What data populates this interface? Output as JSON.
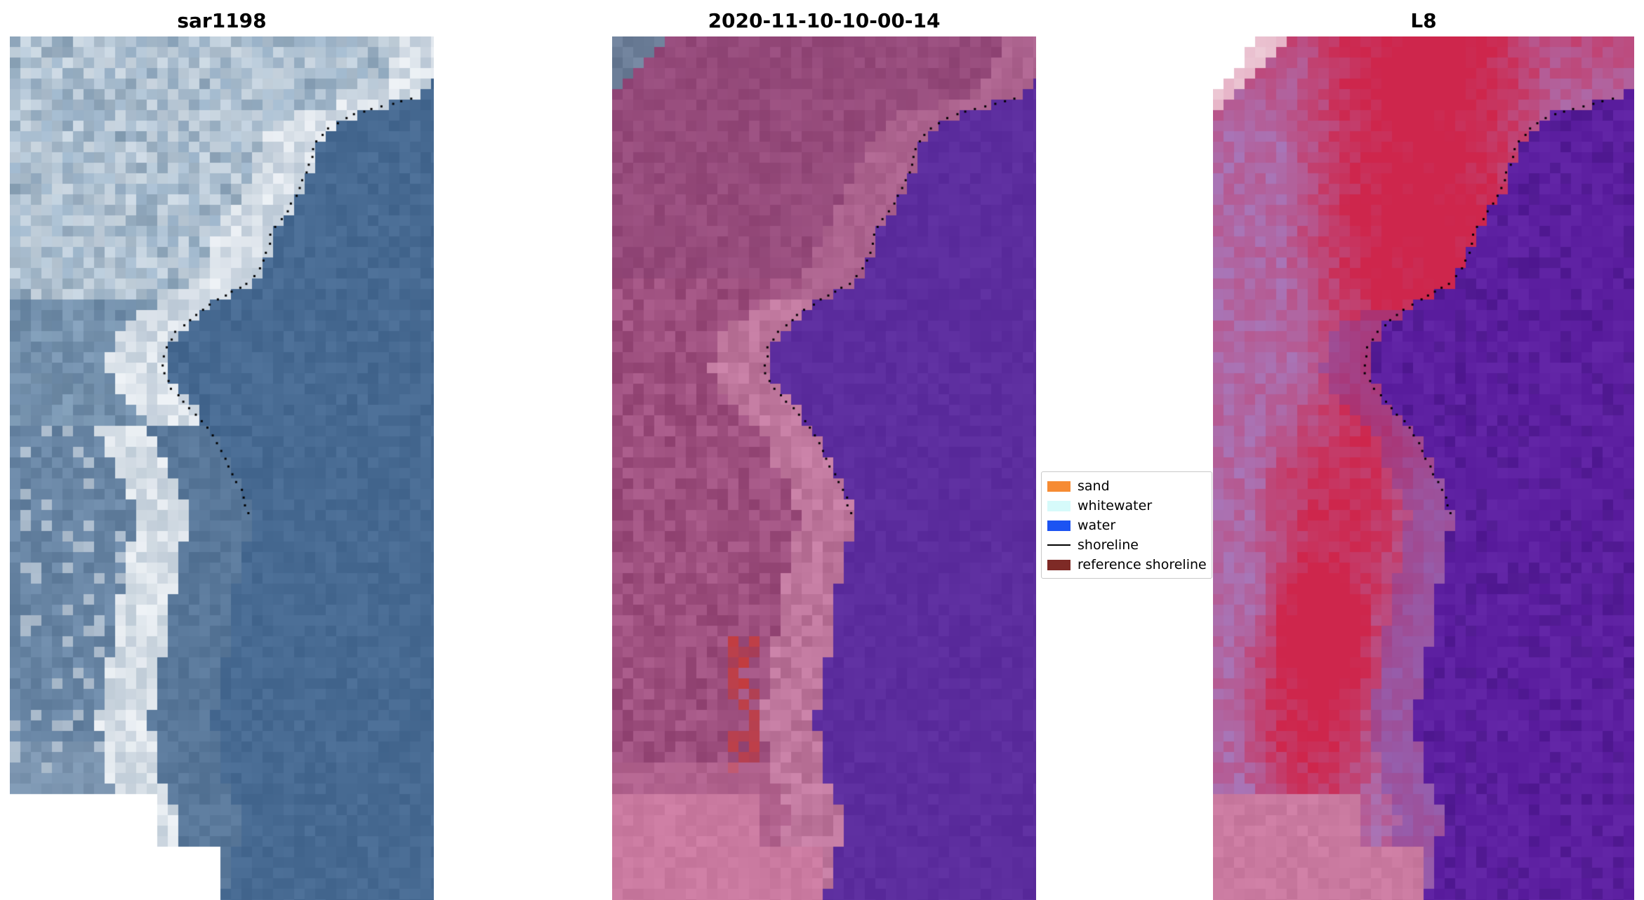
{
  "figure": {
    "background": "#ffffff",
    "panels": [
      {
        "id": "sar1198",
        "title": "sar1198",
        "palette": {
          "water": "#476a92",
          "land": "#809cb5",
          "surf": "#f3f6f9",
          "left_sea": "#6885a4",
          "nodata": "#ffffff"
        }
      },
      {
        "id": "classified",
        "title": "2020-11-10-10-00-14",
        "palette": {
          "water": "#5c2d9e",
          "land": "#9d4f7e",
          "surf": "#be769c",
          "red_patch": "#c43a3a",
          "corner": "#6c7e98",
          "sand_block": "#ca7aa0"
        }
      },
      {
        "id": "l8",
        "title": "L8",
        "palette": {
          "water": "#5d20a1",
          "red": "#ce264c",
          "lavender": "#a876b8",
          "sand_block": "#ca7aa0",
          "nodata": "#ffffff"
        }
      }
    ],
    "legend": {
      "items": [
        {
          "label": "sand",
          "swatch": "patch",
          "color": "#f68b33"
        },
        {
          "label": "whitewater",
          "swatch": "patch",
          "color": "#d6fafa"
        },
        {
          "label": "water",
          "swatch": "patch",
          "color": "#1c53f2"
        },
        {
          "label": "shoreline",
          "swatch": "line",
          "color": "#000000"
        },
        {
          "label": "reference shoreline",
          "swatch": "patch",
          "color": "#7e2a26"
        }
      ]
    }
  },
  "chart_data": {
    "type": "heatmap",
    "title": "",
    "subtitle": "",
    "panels": [
      {
        "title": "sar1198",
        "content": "SAR satellite image with detected shoreline (dotted black)"
      },
      {
        "title": "2020-11-10-10-00-14",
        "content": "classified image (land magenta, water purple) with detected shoreline"
      },
      {
        "title": "L8",
        "content": "Landsat-8 false colour image with detected shoreline"
      }
    ],
    "legend_entries": [
      "sand",
      "whitewater",
      "water",
      "shoreline",
      "reference shoreline"
    ],
    "shoreline_xy_normalized": [
      [
        1.06,
        0.0
      ],
      [
        1.0,
        0.055
      ],
      [
        0.95,
        0.072
      ],
      [
        0.87,
        0.082
      ],
      [
        0.8,
        0.092
      ],
      [
        0.755,
        0.105
      ],
      [
        0.72,
        0.125
      ],
      [
        0.705,
        0.15
      ],
      [
        0.685,
        0.175
      ],
      [
        0.65,
        0.205
      ],
      [
        0.618,
        0.228
      ],
      [
        0.603,
        0.258
      ],
      [
        0.565,
        0.285
      ],
      [
        0.49,
        0.305
      ],
      [
        0.45,
        0.318
      ],
      [
        0.395,
        0.34
      ],
      [
        0.368,
        0.36
      ],
      [
        0.358,
        0.385
      ],
      [
        0.385,
        0.41
      ],
      [
        0.425,
        0.43
      ],
      [
        0.462,
        0.45
      ],
      [
        0.49,
        0.47
      ],
      [
        0.515,
        0.5
      ],
      [
        0.545,
        0.525
      ],
      [
        0.566,
        0.556
      ],
      [
        0.545,
        0.6
      ],
      [
        0.52,
        0.66
      ],
      [
        0.5,
        0.73
      ],
      [
        0.475,
        0.79
      ],
      [
        0.5,
        0.86
      ],
      [
        0.54,
        0.9
      ],
      [
        0.525,
        0.95
      ],
      [
        0.5,
        1.0
      ]
    ],
    "shoreline_dotted_range_y": [
      0.072,
      0.556
    ]
  }
}
